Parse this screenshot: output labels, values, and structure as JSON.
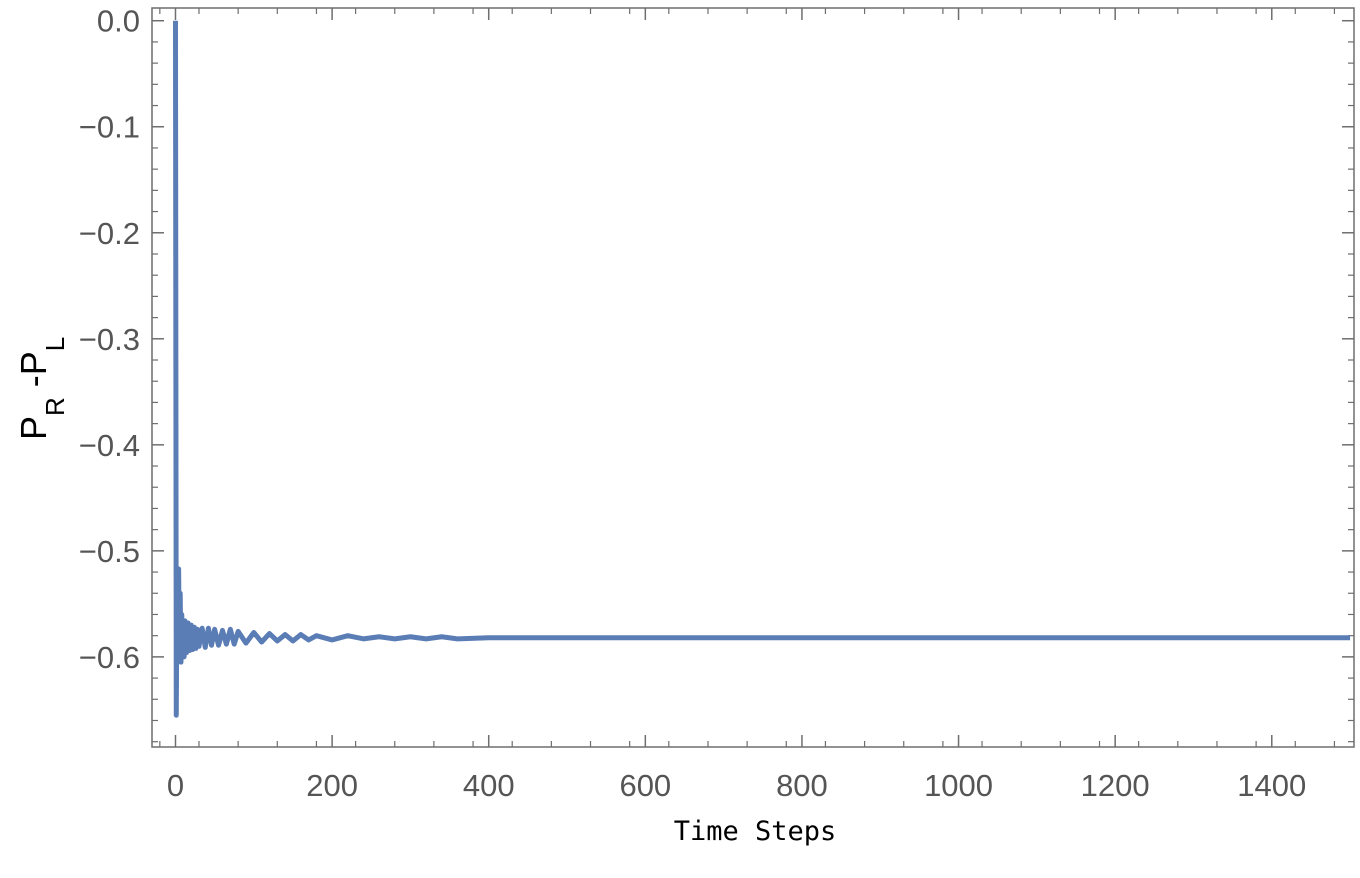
{
  "chart_data": {
    "type": "line",
    "title": "",
    "xlabel": "Time Steps",
    "ylabel": "P_R - P_L",
    "ylabel_parts": {
      "main1": "P",
      "sub1": "R",
      "mid": " -P",
      "sub2": "L"
    },
    "xlim": [
      -30,
      1505
    ],
    "ylim": [
      -0.685,
      0.012
    ],
    "x_ticks": [
      0,
      200,
      400,
      600,
      800,
      1000,
      1200,
      1400
    ],
    "x_tick_labels": [
      "0",
      "200",
      "400",
      "600",
      "800",
      "1000",
      "1200",
      "1400"
    ],
    "y_ticks": [
      0.0,
      -0.1,
      -0.2,
      -0.3,
      -0.4,
      -0.5,
      -0.6
    ],
    "y_tick_labels": [
      "0.0",
      "−0.1",
      "−0.2",
      "−0.3",
      "−0.4",
      "−0.5",
      "−0.6"
    ],
    "grid": false,
    "frame": true,
    "series": [
      {
        "color": "#5b7db5",
        "x": [
          0,
          1,
          2,
          3,
          4,
          5,
          6,
          7,
          8,
          9,
          10,
          11,
          12,
          14,
          16,
          18,
          20,
          22,
          24,
          26,
          28,
          30,
          34,
          38,
          42,
          46,
          50,
          55,
          60,
          65,
          70,
          75,
          80,
          90,
          100,
          110,
          120,
          130,
          140,
          150,
          160,
          170,
          180,
          200,
          220,
          240,
          260,
          280,
          300,
          320,
          340,
          360,
          400,
          500,
          600,
          800,
          1000,
          1200,
          1400,
          1500
        ],
        "y": [
          0.0,
          -0.655,
          -0.52,
          -0.59,
          -0.517,
          -0.6,
          -0.54,
          -0.605,
          -0.56,
          -0.598,
          -0.567,
          -0.6,
          -0.566,
          -0.596,
          -0.568,
          -0.594,
          -0.57,
          -0.593,
          -0.572,
          -0.592,
          -0.574,
          -0.59,
          -0.573,
          -0.591,
          -0.573,
          -0.589,
          -0.574,
          -0.589,
          -0.575,
          -0.588,
          -0.574,
          -0.588,
          -0.576,
          -0.587,
          -0.577,
          -0.586,
          -0.578,
          -0.585,
          -0.579,
          -0.585,
          -0.579,
          -0.584,
          -0.58,
          -0.584,
          -0.58,
          -0.583,
          -0.581,
          -0.583,
          -0.581,
          -0.583,
          -0.581,
          -0.583,
          -0.582,
          -0.582,
          -0.582,
          -0.582,
          -0.582,
          -0.582,
          -0.582,
          -0.582
        ]
      }
    ]
  }
}
